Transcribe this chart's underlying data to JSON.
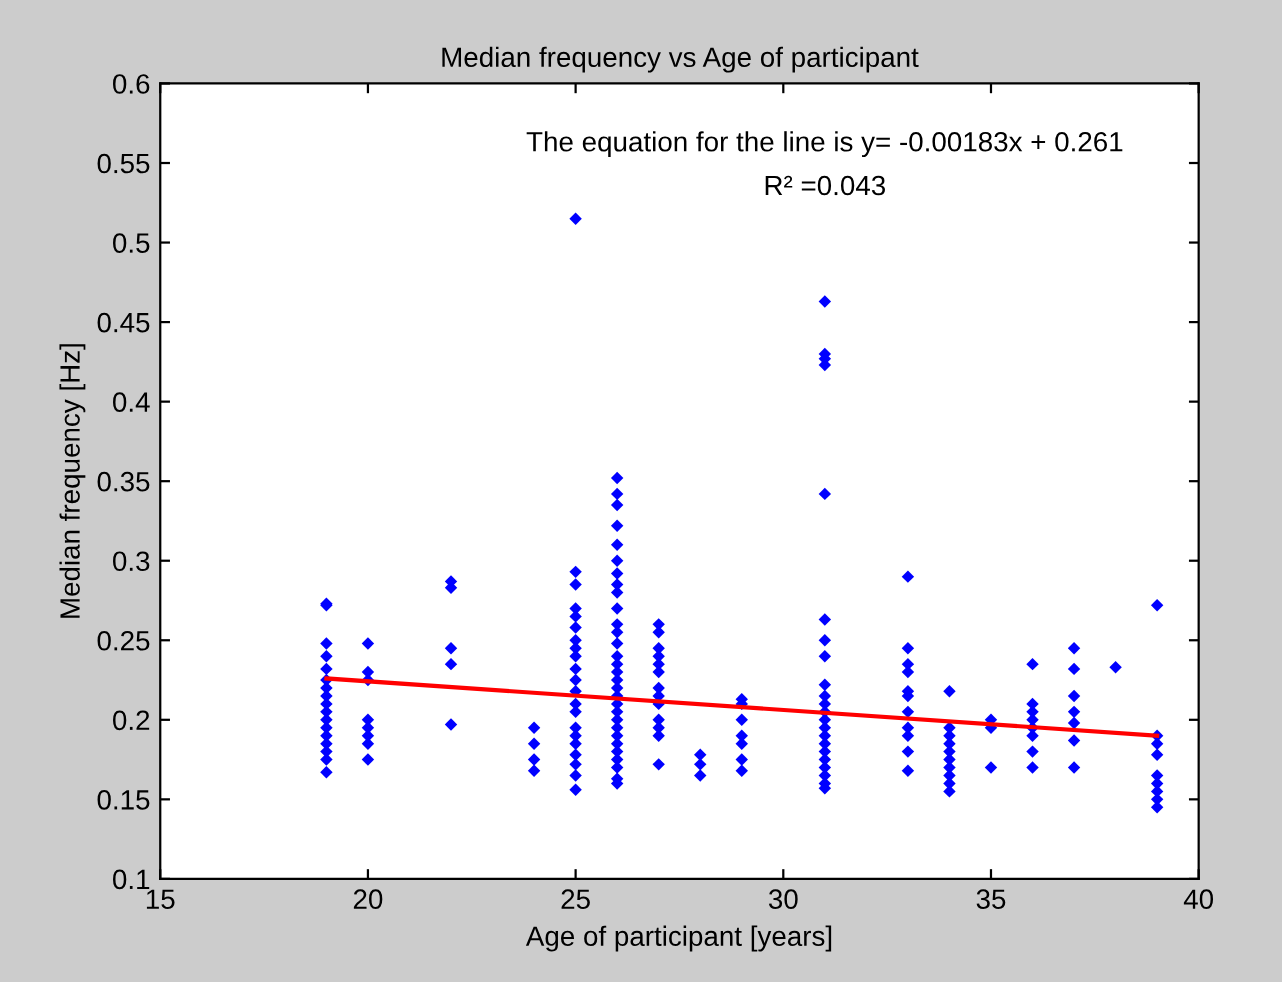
{
  "chart_data": {
    "type": "scatter",
    "title": "Median frequency vs Age of participant",
    "xlabel": "Age of participant [years]",
    "ylabel": "Median frequency [Hz]",
    "xlim": [
      15,
      40
    ],
    "ylim": [
      0.1,
      0.6
    ],
    "xticks": [
      15,
      20,
      25,
      30,
      35,
      40
    ],
    "yticks": [
      0.1,
      0.15,
      0.2,
      0.25,
      0.3,
      0.35,
      0.4,
      0.45,
      0.5,
      0.55,
      0.6
    ],
    "grid": false,
    "marker": "diamond",
    "annotations": [
      "The equation for the line is y= -0.00183x + 0.261",
      "R² =0.043"
    ],
    "series": [
      {
        "color": "#0000ff",
        "x": [
          19,
          19,
          19,
          19,
          19,
          19,
          19,
          19,
          19,
          19,
          19,
          19,
          19,
          19,
          19,
          19,
          19,
          20,
          20,
          20,
          20,
          20,
          20,
          20,
          20,
          22,
          22,
          22,
          22,
          22,
          24,
          24,
          24,
          24,
          25,
          25,
          25,
          25,
          25,
          25,
          25,
          25,
          25,
          25,
          25,
          25,
          25,
          25,
          25,
          25,
          25,
          25,
          25,
          25,
          25,
          26,
          26,
          26,
          26,
          26,
          26,
          26,
          26,
          26,
          26,
          26,
          26,
          26,
          26,
          26,
          26,
          26,
          26,
          26,
          26,
          26,
          26,
          26,
          26,
          26,
          26,
          26,
          26,
          26,
          26,
          27,
          27,
          27,
          27,
          27,
          27,
          27,
          27,
          27,
          27,
          27,
          27,
          27,
          28,
          28,
          28,
          29,
          29,
          29,
          29,
          29,
          29,
          29,
          31,
          31,
          31,
          31,
          31,
          31,
          31,
          31,
          31,
          31,
          31,
          31,
          31,
          31,
          31,
          31,
          31,
          31,
          31,
          31,
          31,
          31,
          33,
          33,
          33,
          33,
          33,
          33,
          33,
          33,
          33,
          33,
          33,
          34,
          34,
          34,
          34,
          34,
          34,
          34,
          34,
          34,
          34,
          35,
          35,
          35,
          36,
          36,
          36,
          36,
          36,
          36,
          36,
          36,
          37,
          37,
          37,
          37,
          37,
          37,
          37,
          38,
          39,
          39,
          39,
          39,
          39,
          39,
          39,
          39,
          39
        ],
        "values": [
          0.273,
          0.272,
          0.248,
          0.24,
          0.232,
          0.225,
          0.22,
          0.215,
          0.21,
          0.205,
          0.2,
          0.195,
          0.19,
          0.185,
          0.18,
          0.175,
          0.167,
          0.248,
          0.23,
          0.225,
          0.2,
          0.195,
          0.19,
          0.185,
          0.175,
          0.287,
          0.283,
          0.245,
          0.235,
          0.197,
          0.195,
          0.185,
          0.175,
          0.168,
          0.515,
          0.293,
          0.285,
          0.27,
          0.265,
          0.258,
          0.25,
          0.245,
          0.24,
          0.232,
          0.225,
          0.218,
          0.21,
          0.205,
          0.195,
          0.19,
          0.185,
          0.178,
          0.172,
          0.165,
          0.156,
          0.352,
          0.342,
          0.335,
          0.322,
          0.31,
          0.3,
          0.292,
          0.285,
          0.28,
          0.27,
          0.26,
          0.255,
          0.248,
          0.24,
          0.235,
          0.23,
          0.225,
          0.22,
          0.215,
          0.21,
          0.205,
          0.2,
          0.195,
          0.19,
          0.185,
          0.18,
          0.175,
          0.17,
          0.163,
          0.16,
          0.26,
          0.255,
          0.245,
          0.24,
          0.235,
          0.23,
          0.22,
          0.215,
          0.21,
          0.2,
          0.195,
          0.19,
          0.172,
          0.178,
          0.172,
          0.165,
          0.213,
          0.21,
          0.2,
          0.19,
          0.185,
          0.175,
          0.168,
          0.463,
          0.43,
          0.427,
          0.423,
          0.342,
          0.263,
          0.25,
          0.24,
          0.222,
          0.215,
          0.21,
          0.205,
          0.2,
          0.195,
          0.19,
          0.185,
          0.18,
          0.175,
          0.17,
          0.165,
          0.16,
          0.157,
          0.29,
          0.245,
          0.235,
          0.23,
          0.218,
          0.215,
          0.205,
          0.195,
          0.19,
          0.18,
          0.168,
          0.218,
          0.195,
          0.19,
          0.185,
          0.18,
          0.175,
          0.17,
          0.165,
          0.16,
          0.155,
          0.2,
          0.195,
          0.17,
          0.235,
          0.21,
          0.205,
          0.2,
          0.195,
          0.19,
          0.18,
          0.17,
          0.245,
          0.232,
          0.215,
          0.205,
          0.198,
          0.187,
          0.17,
          0.233,
          0.272,
          0.19,
          0.185,
          0.178,
          0.165,
          0.16,
          0.155,
          0.15,
          0.145
        ]
      },
      {
        "type": "line",
        "color": "#ff0000",
        "marker": "none",
        "line_style": "solid",
        "x": [
          19,
          39
        ],
        "values": [
          0.226,
          0.19
        ]
      }
    ]
  }
}
